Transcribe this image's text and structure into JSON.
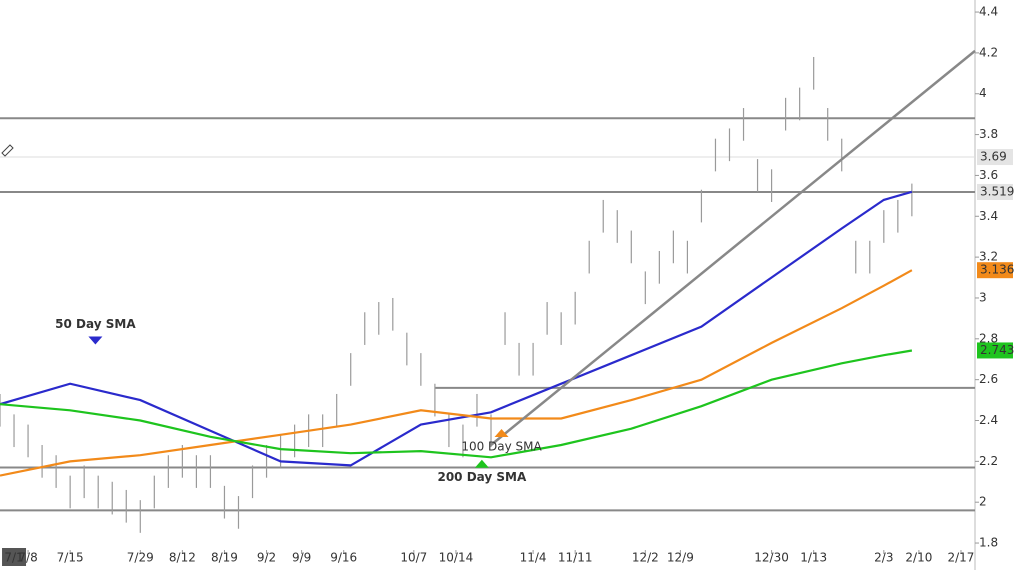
{
  "chart_data": {
    "type": "ohlc",
    "ylim": [
      1.668,
      4.459
    ],
    "xlim": [
      0,
      139
    ],
    "yticks": [
      1.8,
      2,
      2.2,
      2.4,
      2.6,
      2.8,
      3,
      3.2,
      3.4,
      3.6,
      3.8,
      4,
      4.2,
      4.4
    ],
    "xticks": [
      {
        "value": 2,
        "label": "7/1"
      },
      {
        "value": 4,
        "label": "7/8"
      },
      {
        "value": 10,
        "label": "7/15"
      },
      {
        "value": 20,
        "label": "7/29"
      },
      {
        "value": 26,
        "label": "8/12"
      },
      {
        "value": 32,
        "label": "8/19"
      },
      {
        "value": 38,
        "label": "9/2"
      },
      {
        "value": 43,
        "label": "9/9"
      },
      {
        "value": 49,
        "label": "9/16"
      },
      {
        "value": 59,
        "label": "10/7"
      },
      {
        "value": 65,
        "label": "10/14"
      },
      {
        "value": 76,
        "label": "11/4"
      },
      {
        "value": 82,
        "label": "11/11"
      },
      {
        "value": 92,
        "label": "12/2"
      },
      {
        "value": 97,
        "label": "12/9"
      },
      {
        "value": 110,
        "label": "12/30"
      },
      {
        "value": 116,
        "label": "1/13"
      },
      {
        "value": 126,
        "label": "2/3"
      },
      {
        "value": 131,
        "label": "2/10"
      },
      {
        "value": 137,
        "label": "2/17"
      }
    ],
    "bars": {
      "color": "#9a9a9a",
      "x": [
        0,
        2,
        4,
        6,
        8,
        10,
        12,
        14,
        16,
        18,
        20,
        22,
        24,
        26,
        28,
        30,
        32,
        34,
        36,
        38,
        40,
        42,
        44,
        46,
        48,
        50,
        52,
        54,
        56,
        58,
        60,
        62,
        64,
        66,
        68,
        70,
        72,
        74,
        76,
        78,
        80,
        82,
        84,
        86,
        88,
        90,
        92,
        94,
        96,
        98,
        100,
        102,
        104,
        106,
        108,
        110,
        112,
        114,
        116,
        118,
        120,
        122,
        124,
        126,
        128,
        130
      ],
      "high": [
        2.53,
        2.43,
        2.38,
        2.28,
        2.23,
        2.13,
        2.18,
        2.13,
        2.1,
        2.06,
        2.01,
        2.13,
        2.23,
        2.28,
        2.23,
        2.23,
        2.08,
        2.03,
        2.18,
        2.28,
        2.33,
        2.38,
        2.43,
        2.43,
        2.53,
        2.73,
        2.93,
        2.98,
        3.0,
        2.83,
        2.73,
        2.58,
        2.43,
        2.38,
        2.53,
        2.43,
        2.93,
        2.78,
        2.78,
        2.98,
        2.93,
        3.03,
        3.28,
        3.48,
        3.43,
        3.33,
        3.13,
        3.23,
        3.33,
        3.28,
        3.53,
        3.78,
        3.83,
        3.93,
        3.68,
        3.63,
        3.98,
        4.03,
        4.18,
        3.93,
        3.78,
        3.28,
        3.28,
        3.43,
        3.48,
        3.56
      ],
      "low": [
        2.37,
        2.27,
        2.22,
        2.12,
        2.07,
        1.97,
        2.02,
        1.97,
        1.94,
        1.9,
        1.85,
        1.97,
        2.07,
        2.12,
        2.07,
        2.07,
        1.92,
        1.87,
        2.02,
        2.12,
        2.17,
        2.22,
        2.27,
        2.27,
        2.37,
        2.57,
        2.77,
        2.82,
        2.84,
        2.67,
        2.57,
        2.42,
        2.27,
        2.22,
        2.37,
        2.27,
        2.77,
        2.62,
        2.62,
        2.82,
        2.77,
        2.87,
        3.12,
        3.32,
        3.27,
        3.17,
        2.97,
        3.07,
        3.17,
        3.12,
        3.37,
        3.62,
        3.67,
        3.77,
        3.52,
        3.47,
        3.82,
        3.87,
        4.02,
        3.77,
        3.62,
        3.12,
        3.12,
        3.27,
        3.32,
        3.4
      ]
    },
    "series": [
      {
        "name": "50 Day SMA",
        "color": "#2a2acc",
        "x": [
          0,
          10,
          20,
          30,
          40,
          50,
          60,
          70,
          80,
          90,
          100,
          110,
          120,
          126,
          130
        ],
        "values": [
          2.48,
          2.58,
          2.5,
          2.35,
          2.2,
          2.18,
          2.38,
          2.44,
          2.58,
          2.72,
          2.86,
          3.1,
          3.34,
          3.48,
          3.52
        ]
      },
      {
        "name": "100 Day SMA",
        "color": "#f28a1a",
        "x": [
          0,
          10,
          20,
          30,
          40,
          50,
          60,
          70,
          80,
          90,
          100,
          110,
          120,
          126,
          130
        ],
        "values": [
          2.13,
          2.2,
          2.23,
          2.28,
          2.33,
          2.38,
          2.45,
          2.41,
          2.41,
          2.5,
          2.6,
          2.78,
          2.95,
          3.06,
          3.136
        ]
      },
      {
        "name": "200 Day SMA",
        "color": "#1ec41e",
        "x": [
          0,
          10,
          20,
          30,
          40,
          50,
          60,
          70,
          80,
          90,
          100,
          110,
          120,
          126,
          130
        ],
        "values": [
          2.48,
          2.45,
          2.4,
          2.32,
          2.26,
          2.24,
          2.25,
          2.22,
          2.28,
          2.36,
          2.47,
          2.6,
          2.68,
          2.72,
          2.743
        ]
      }
    ],
    "levels": [
      {
        "value": 3.88,
        "x_start": 0
      },
      {
        "value": 3.519,
        "x_start": 0
      },
      {
        "value": 2.56,
        "x_start": 62
      },
      {
        "value": 2.17,
        "x_start": 0
      },
      {
        "value": 1.96,
        "x_start": 0
      }
    ],
    "faint_level": 3.69,
    "trendline": {
      "x": [
        70,
        139
      ],
      "values": [
        2.28,
        4.21
      ]
    },
    "price_tags": [
      {
        "value": 3.69,
        "color": "#e4e4e4",
        "text_color": "#222"
      },
      {
        "value": 3.519,
        "color": "#e4e4e4",
        "text_color": "#222"
      },
      {
        "value": 3.136,
        "color": "#f28a1a",
        "text_color": "#222"
      },
      {
        "value": 2.743,
        "color": "#1ec41e",
        "text_color": "#222"
      }
    ],
    "annotations": [
      {
        "text": "50 Day SMA",
        "series": 0,
        "x": 13.6,
        "y": 2.87,
        "arrow": "down"
      },
      {
        "text": "100 Day SMA",
        "series": 1,
        "x": 71.5,
        "y": 2.27,
        "arrow": "up"
      },
      {
        "text": "200 Day SMA",
        "series": 2,
        "x": 68.7,
        "y": 2.12,
        "arrow": "up"
      }
    ]
  }
}
